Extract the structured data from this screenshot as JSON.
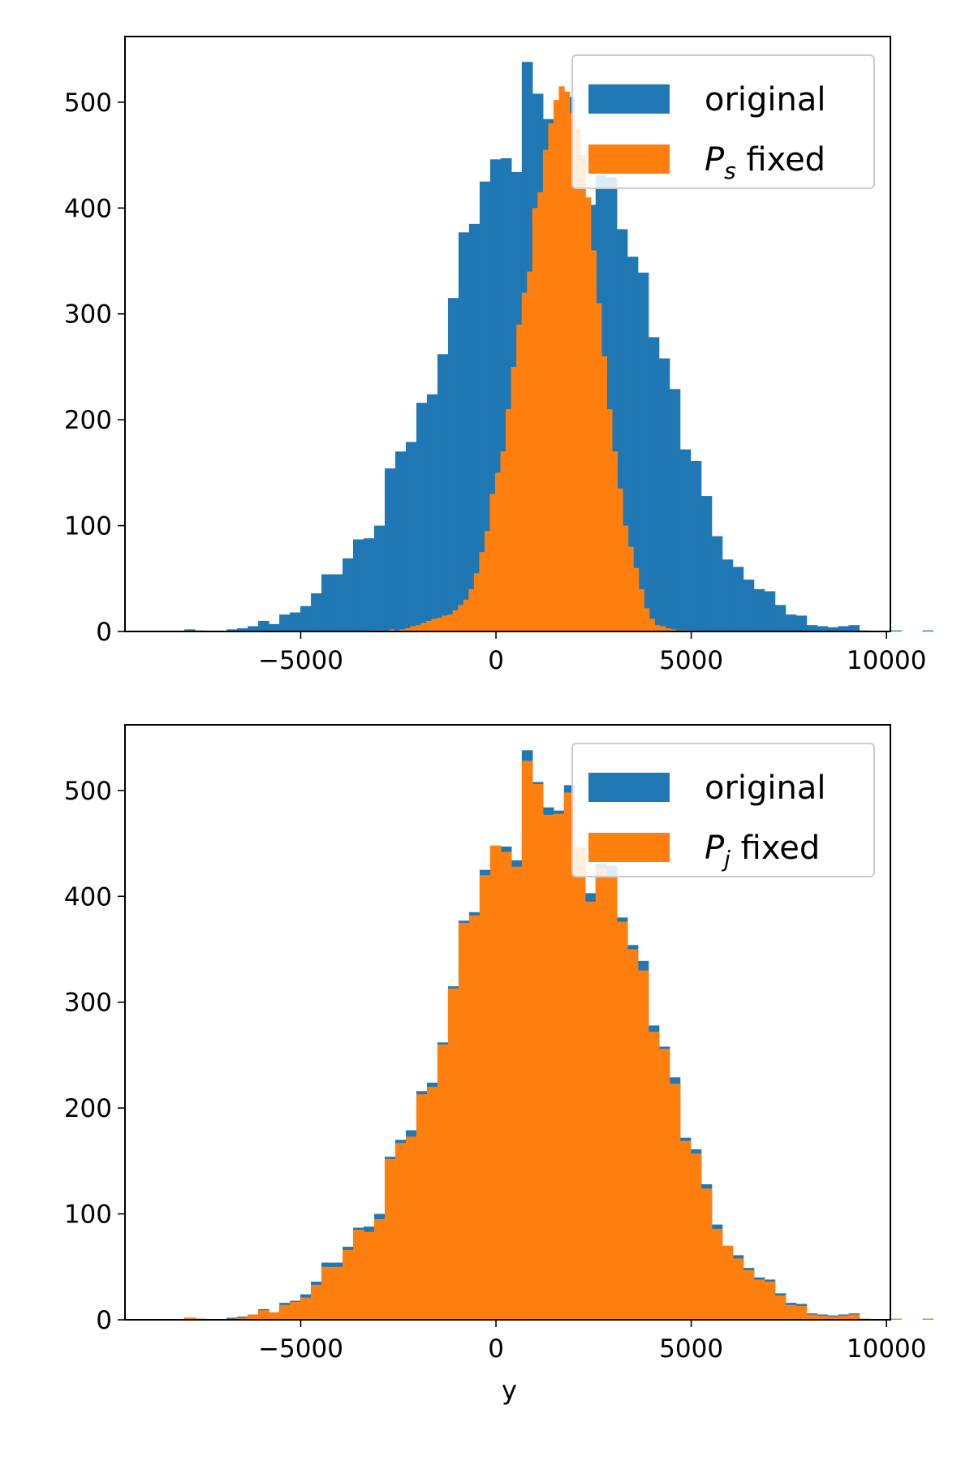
{
  "colors": {
    "original": "#1f77b4",
    "fixed": "#ff7f0e",
    "axis": "#000000",
    "legend_border": "#cccccc"
  },
  "chart_data": [
    {
      "type": "histogram",
      "xlim": [
        -9500,
        10100
      ],
      "ylim": [
        0,
        562
      ],
      "xticks": [
        -5000,
        0,
        5000,
        10000
      ],
      "xtick_labels": [
        "−5000",
        "0",
        "5000",
        "10000"
      ],
      "yticks": [
        0,
        100,
        200,
        300,
        400,
        500
      ],
      "ytick_labels": [
        "0",
        "100",
        "200",
        "300",
        "400",
        "500"
      ],
      "xlabel": "",
      "legend_position": "top-right",
      "legend": [
        {
          "series": "original",
          "text": "original",
          "sub": ""
        },
        {
          "series": "fixed",
          "text": "P",
          "sub": "s",
          "suffix": " fixed"
        }
      ],
      "series": [
        {
          "name": "original",
          "bin_start": -7979,
          "bin_width": 270,
          "counts": [
            2,
            1,
            0,
            0,
            2,
            3,
            5,
            10,
            7,
            16,
            18,
            24,
            36,
            54,
            54,
            69,
            87,
            88,
            100,
            154,
            170,
            179,
            216,
            224,
            262,
            315,
            377,
            385,
            425,
            446,
            447,
            434,
            538,
            508,
            484,
            481,
            505,
            446,
            403,
            431,
            429,
            380,
            354,
            339,
            278,
            258,
            229,
            172,
            161,
            128,
            90,
            68,
            61,
            49,
            40,
            38,
            25,
            16,
            15,
            6,
            5,
            4,
            5,
            6,
            1,
            0,
            0,
            1,
            0,
            0,
            1
          ],
          "opacity": 1
        },
        {
          "name": "fixed",
          "bin_start": -3150,
          "bin_width": 136,
          "counts": [
            1,
            1,
            0,
            2,
            1,
            2,
            3,
            5,
            6,
            8,
            10,
            12,
            13,
            15,
            16,
            20,
            25,
            30,
            40,
            55,
            75,
            95,
            130,
            150,
            170,
            210,
            250,
            290,
            320,
            340,
            400,
            415,
            455,
            480,
            502,
            515,
            510,
            490,
            475,
            450,
            410,
            360,
            310,
            260,
            210,
            170,
            135,
            100,
            80,
            60,
            40,
            22,
            12,
            6,
            5,
            3,
            2,
            1,
            1,
            1
          ],
          "opacity": 1
        }
      ]
    },
    {
      "type": "histogram",
      "xlim": [
        -9500,
        10100
      ],
      "ylim": [
        0,
        562
      ],
      "xticks": [
        -5000,
        0,
        5000,
        10000
      ],
      "xtick_labels": [
        "−5000",
        "0",
        "5000",
        "10000"
      ],
      "yticks": [
        0,
        100,
        200,
        300,
        400,
        500
      ],
      "ytick_labels": [
        "0",
        "100",
        "200",
        "300",
        "400",
        "500"
      ],
      "xlabel": "y",
      "legend_position": "top-right",
      "legend": [
        {
          "series": "original",
          "text": "original",
          "sub": ""
        },
        {
          "series": "fixed",
          "text": "P",
          "sub": "j",
          "suffix": " fixed"
        }
      ],
      "series": [
        {
          "name": "original",
          "bin_start": -7979,
          "bin_width": 270,
          "counts": [
            2,
            1,
            0,
            0,
            2,
            3,
            5,
            10,
            7,
            16,
            18,
            24,
            36,
            54,
            54,
            69,
            87,
            88,
            100,
            154,
            170,
            179,
            216,
            224,
            262,
            315,
            377,
            385,
            425,
            446,
            447,
            434,
            538,
            508,
            484,
            481,
            505,
            446,
            403,
            431,
            429,
            380,
            354,
            339,
            278,
            258,
            229,
            172,
            161,
            128,
            90,
            68,
            61,
            49,
            40,
            38,
            25,
            16,
            15,
            6,
            5,
            4,
            5,
            6,
            1,
            0,
            0,
            1,
            0,
            0,
            1
          ],
          "opacity": 1
        },
        {
          "name": "fixed",
          "bin_start": -7979,
          "bin_width": 270,
          "counts": [
            2,
            1,
            0,
            0,
            1,
            2,
            5,
            9,
            7,
            14,
            17,
            21,
            33,
            50,
            50,
            66,
            85,
            83,
            95,
            152,
            167,
            173,
            213,
            220,
            260,
            313,
            375,
            382,
            420,
            448,
            442,
            428,
            528,
            506,
            477,
            478,
            498,
            446,
            395,
            427,
            419,
            376,
            350,
            330,
            272,
            256,
            223,
            169,
            157,
            124,
            86,
            70,
            58,
            47,
            38,
            36,
            23,
            14,
            13,
            5,
            4,
            3,
            4,
            5,
            1,
            0,
            0,
            1,
            0,
            0,
            1
          ],
          "opacity": 1
        }
      ]
    }
  ]
}
